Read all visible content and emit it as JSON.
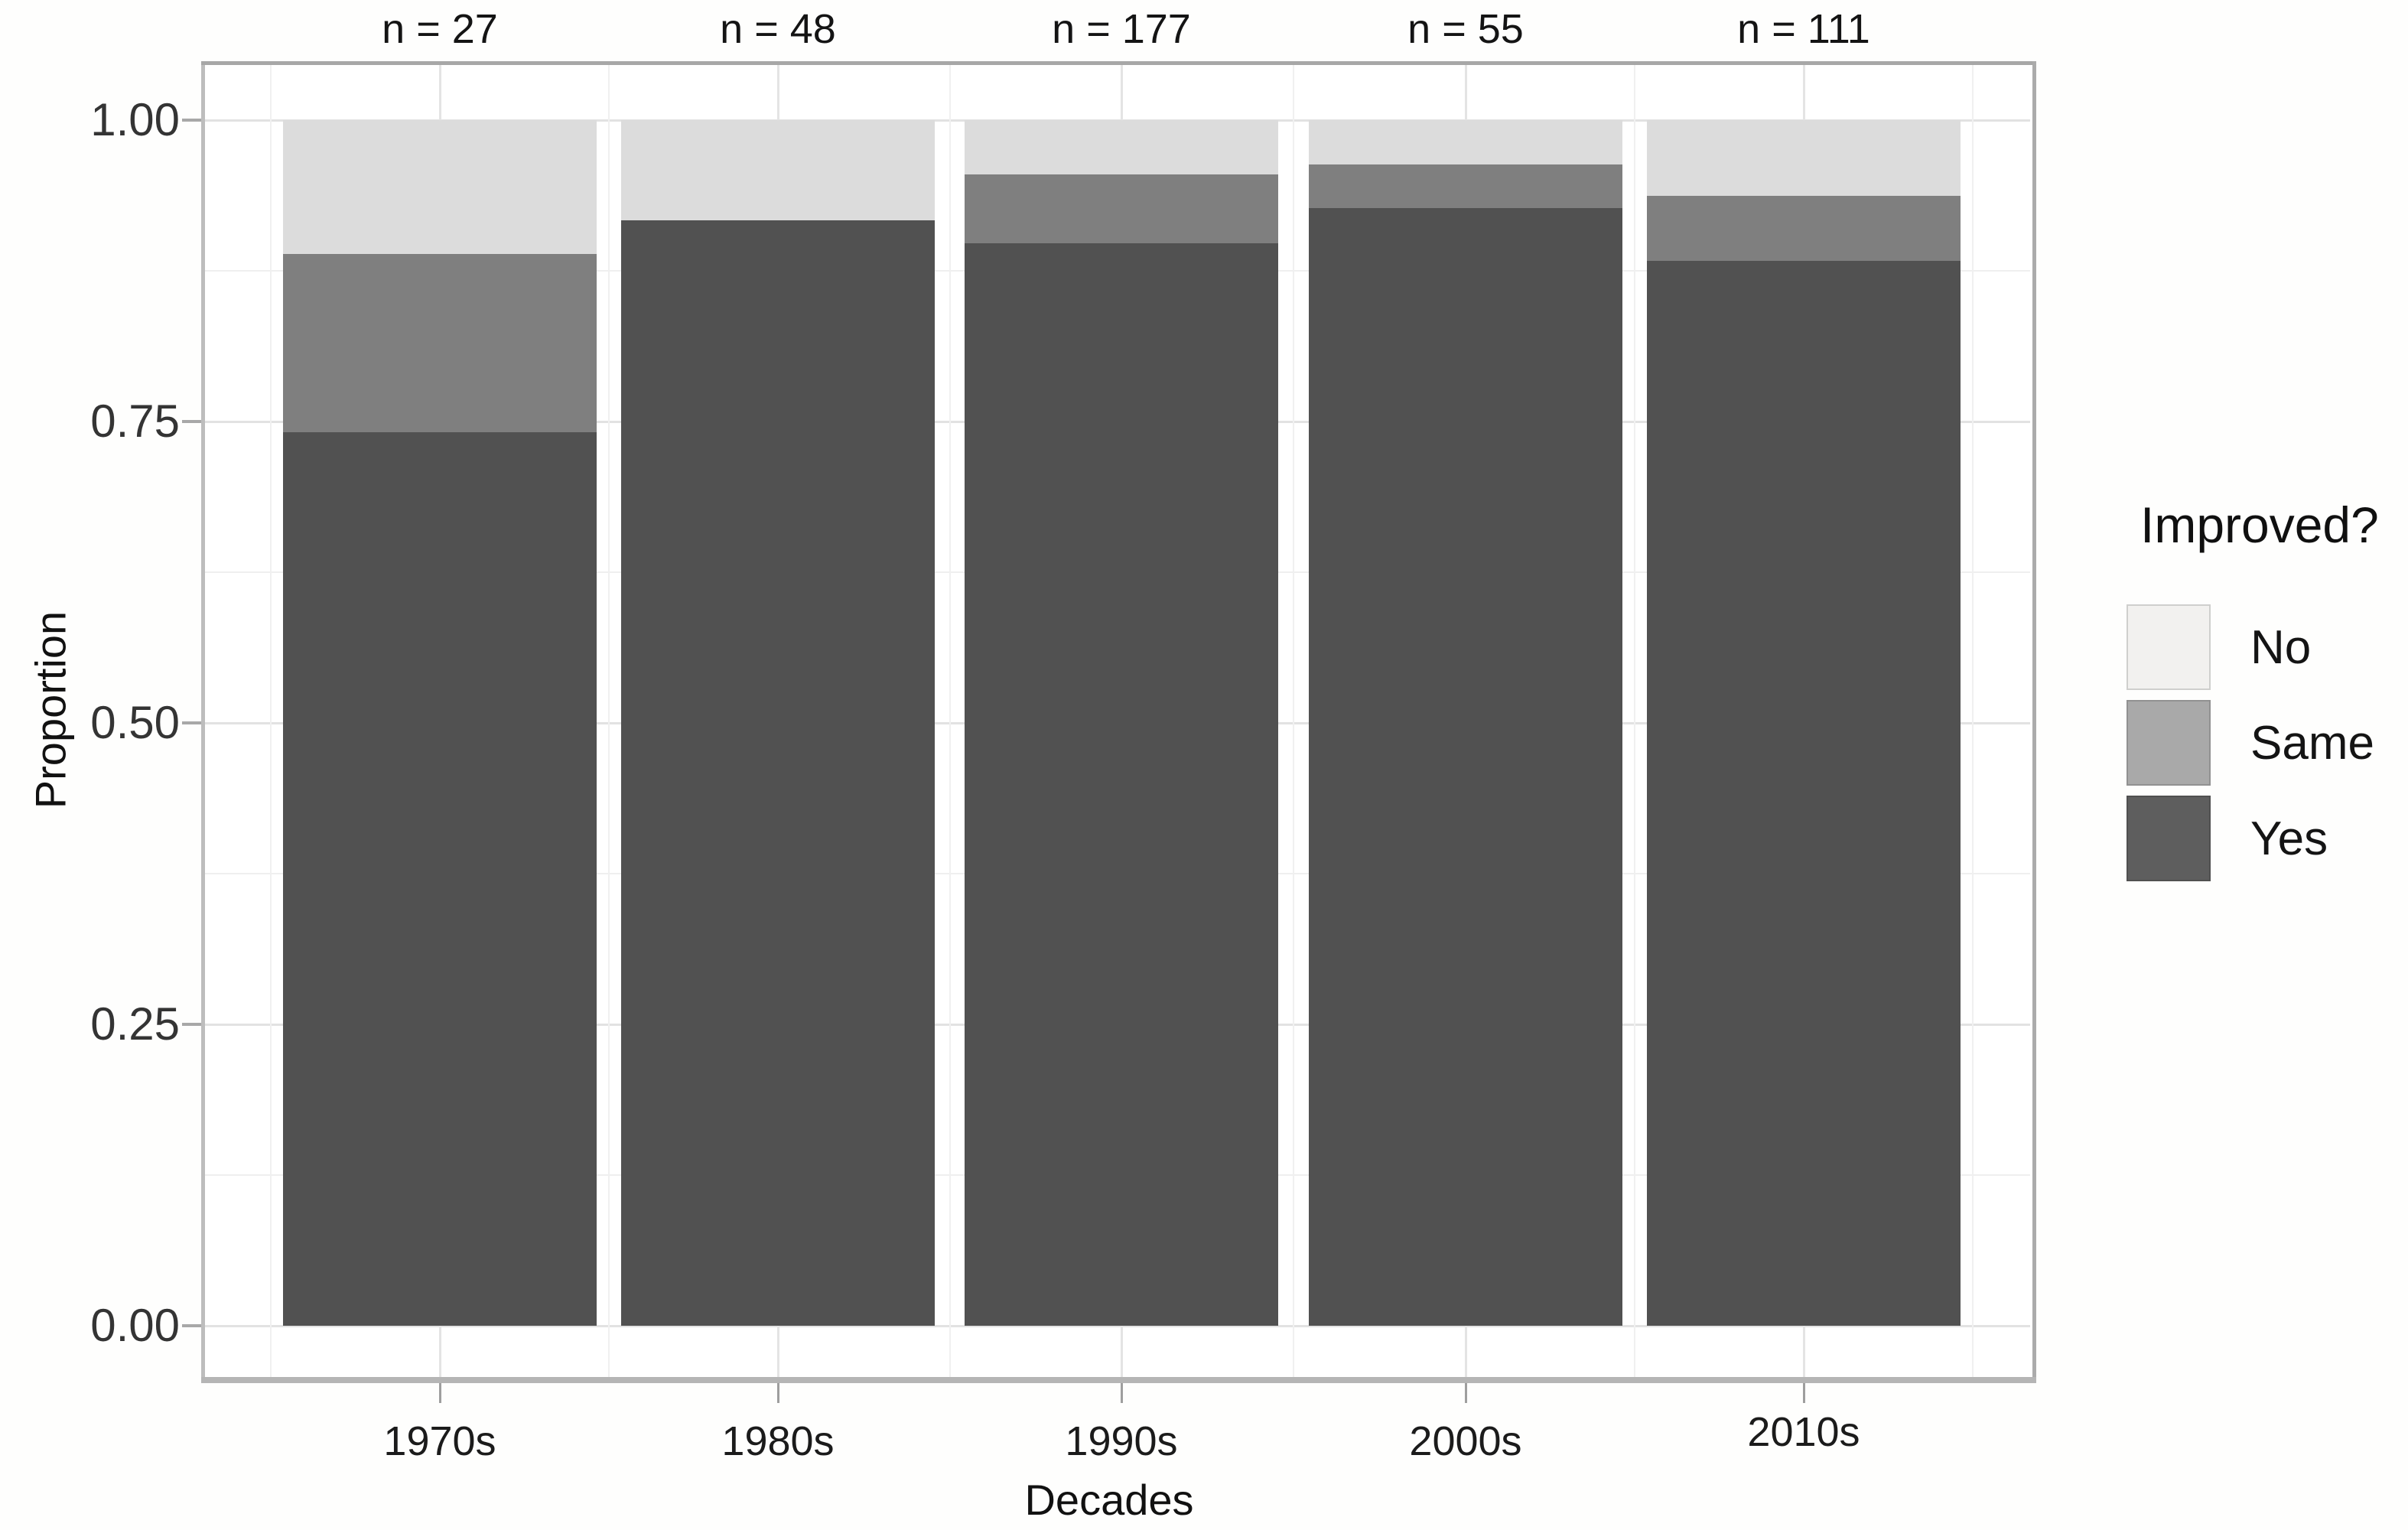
{
  "chart_data": {
    "type": "bar",
    "subtype": "stacked-proportion",
    "title": "",
    "xlabel": "Decades",
    "ylabel": "Proportion",
    "ylim": [
      0,
      1
    ],
    "grid": "major-and-minor",
    "legend_position": "right",
    "categories": [
      "1970s",
      "1980s",
      "1990s",
      "2000s",
      "2010s"
    ],
    "sample_sizes": [
      27,
      48,
      177,
      55,
      111
    ],
    "count_labels": [
      "n = 27",
      "n = 48",
      "n = 177",
      "n = 55",
      "n = 111"
    ],
    "y_ticks": {
      "major": [
        0,
        0.25,
        0.5,
        0.75,
        1
      ],
      "labels": [
        "0.00",
        "0.25",
        "0.50",
        "0.75",
        "1.00"
      ],
      "minor": [
        0.125,
        0.375,
        0.625,
        0.875
      ]
    },
    "series": [
      {
        "name": "Yes",
        "color": "#515151",
        "values": [
          0.741,
          0.917,
          0.898,
          0.927,
          0.883
        ]
      },
      {
        "name": "Same",
        "color": "#7f7f7f",
        "values": [
          0.148,
          0.0,
          0.057,
          0.036,
          0.054
        ]
      },
      {
        "name": "No",
        "color": "#dcdcdc",
        "values": [
          0.111,
          0.083,
          0.045,
          0.037,
          0.063
        ]
      }
    ],
    "legend": {
      "title": "Improved?",
      "entries": [
        {
          "label": "No",
          "swatch_color": "#f2f1ef"
        },
        {
          "label": "Same",
          "swatch_color": "#a9a9a9"
        },
        {
          "label": "Yes",
          "swatch_color": "#5e5e5e"
        }
      ]
    }
  }
}
